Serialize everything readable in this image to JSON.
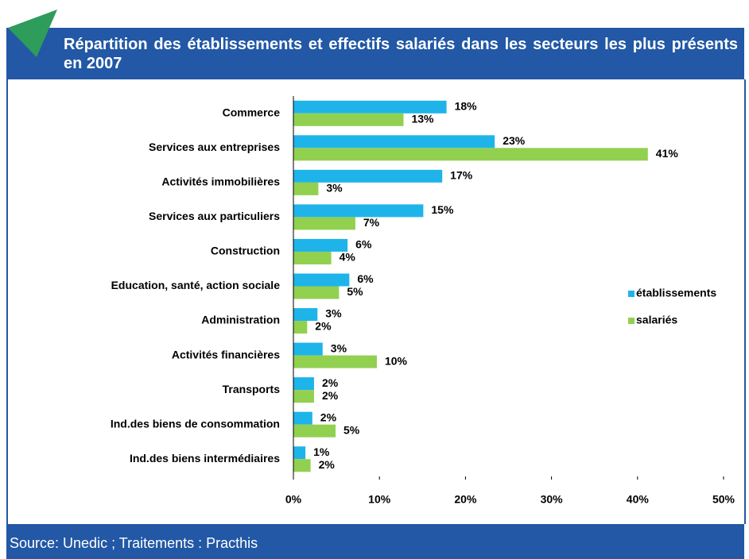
{
  "chart_data": {
    "type": "hbar",
    "title": "Répartition des établissements et effectifs salariés dans les secteurs les plus présents en 2007",
    "source": "Source: Unedic ; Traitements : Practhis",
    "categories": [
      "Commerce",
      "Services aux entreprises",
      "Activités immobilières",
      "Services aux particuliers",
      "Construction",
      "Education, santé, action sociale",
      "Administration",
      "Activités financières",
      "Transports",
      "Ind.des biens de consommation",
      "Ind.des biens intermédiaires"
    ],
    "series": [
      {
        "name": "établissements",
        "color": "#1eb4ea",
        "values": [
          17.8,
          23.4,
          17.3,
          15.1,
          6.3,
          6.5,
          2.8,
          3.4,
          2.4,
          2.2,
          1.4
        ],
        "value_labels": [
          "18%",
          "23%",
          "17%",
          "15%",
          "6%",
          "6%",
          "3%",
          "3%",
          "2%",
          "2%",
          "1%"
        ]
      },
      {
        "name": "salariés",
        "color": "#92d050",
        "values": [
          12.8,
          41.2,
          2.9,
          7.2,
          4.4,
          5.3,
          1.6,
          9.7,
          2.4,
          4.9,
          2.0
        ],
        "value_labels": [
          "13%",
          "41%",
          "3%",
          "7%",
          "4%",
          "5%",
          "2%",
          "10%",
          "2%",
          "5%",
          "2%"
        ]
      }
    ],
    "xlim": [
      0,
      50
    ],
    "xticks": [
      {
        "value": 0,
        "label": "0%"
      },
      {
        "value": 10,
        "label": "10%"
      },
      {
        "value": 20,
        "label": "20%"
      },
      {
        "value": 30,
        "label": "30%"
      },
      {
        "value": 40,
        "label": "40%"
      },
      {
        "value": 50,
        "label": "50%"
      }
    ],
    "legend": "right"
  }
}
